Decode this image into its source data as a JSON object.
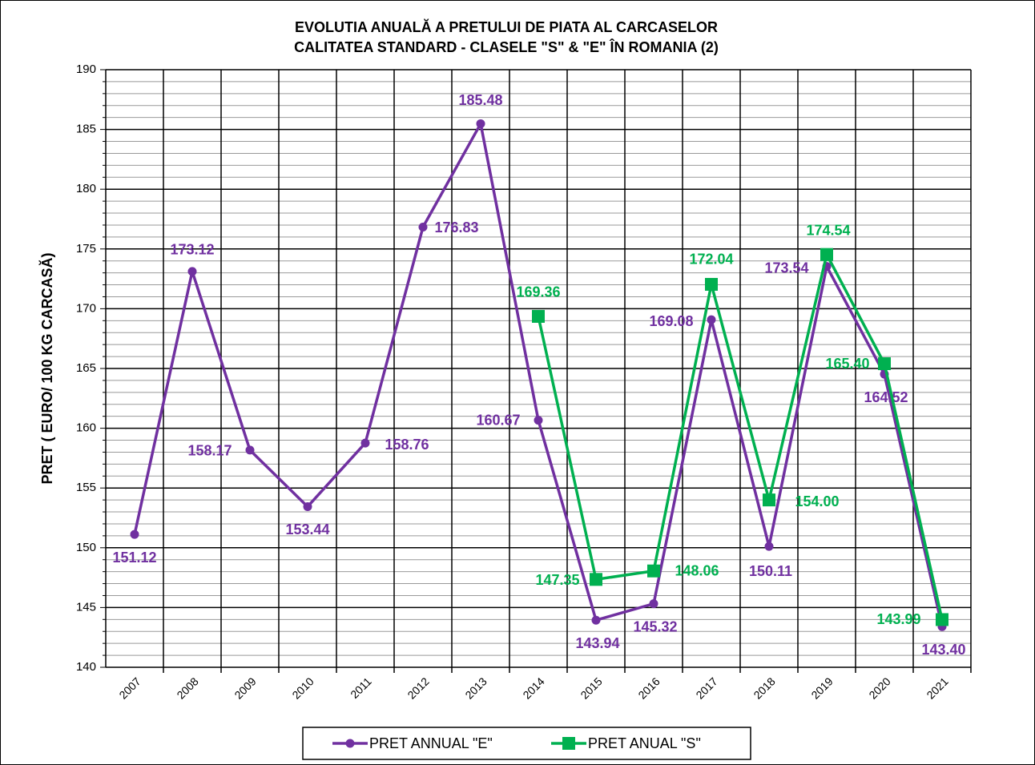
{
  "chart_data": {
    "type": "line",
    "title": [
      "EVOLUTIA ANUALĂ A PRETULUI  DE PIATA   AL CARCASELOR",
      "CALITATEA STANDARD - CLASELE \"S\" & \"E\"  ÎN ROMANIA (2)"
    ],
    "y_label": "PRET ( EURO/ 100 KG CARCASĂ)",
    "categories": [
      "2007",
      "2008",
      "2009",
      "2010",
      "2011",
      "2012",
      "2013",
      "2014",
      "2015",
      "2016",
      "2017",
      "2018",
      "2019",
      "2020",
      "2021"
    ],
    "series": [
      {
        "name": "PRET ANNUAL \"E\"",
        "color": "#7030a0",
        "marker": "circle",
        "values": [
          151.12,
          173.12,
          158.17,
          153.44,
          158.76,
          176.83,
          185.48,
          160.67,
          143.94,
          145.32,
          169.08,
          150.11,
          173.54,
          164.52,
          143.4
        ],
        "value_labels": [
          "151.12",
          "173.12",
          "158.17",
          "153.44",
          "158.76",
          "176.83",
          "185.48",
          "160.67",
          "143.94",
          "145.32",
          "169.08",
          "150.11",
          "173.54",
          "164.52",
          "143.40"
        ]
      },
      {
        "name": "PRET ANUAL \"S\"",
        "color": "#00b050",
        "marker": "square",
        "values": [
          null,
          null,
          null,
          null,
          null,
          null,
          null,
          169.36,
          147.35,
          148.06,
          172.04,
          154.0,
          174.54,
          165.4,
          143.99
        ],
        "value_labels": [
          null,
          null,
          null,
          null,
          null,
          null,
          null,
          "169.36",
          "147.35",
          "148.06",
          "172.04",
          "154.00",
          "174.54",
          "165.40",
          "143.99"
        ]
      }
    ],
    "ylim": [
      140,
      190
    ],
    "yticks": [
      140,
      145,
      150,
      155,
      160,
      165,
      170,
      175,
      180,
      185,
      190
    ],
    "grid": true,
    "legend": "bottom"
  }
}
